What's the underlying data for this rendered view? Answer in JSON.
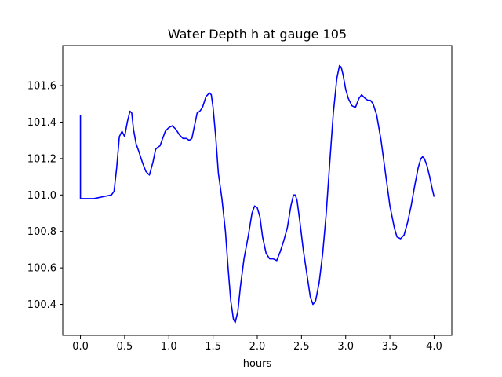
{
  "chart_data": {
    "type": "line",
    "title": "Water Depth h at gauge 105",
    "xlabel": "hours",
    "ylabel": "",
    "xlim": [
      -0.2,
      4.2
    ],
    "ylim": [
      100.23,
      101.82
    ],
    "xticks": [
      "0.0",
      "0.5",
      "1.0",
      "1.5",
      "2.0",
      "2.5",
      "3.0",
      "3.5",
      "4.0"
    ],
    "yticks": [
      "100.4",
      "100.6",
      "100.8",
      "101.0",
      "101.2",
      "101.4",
      "101.6"
    ],
    "grid": false,
    "color": "#0000ff",
    "series": [
      {
        "x": [
          0.0,
          0.0,
          0.0,
          0.05,
          0.1,
          0.15,
          0.2,
          0.25,
          0.3,
          0.35,
          0.38,
          0.41,
          0.44,
          0.47,
          0.5,
          0.53,
          0.56,
          0.58,
          0.6,
          0.63,
          0.66,
          0.7,
          0.74,
          0.78,
          0.82,
          0.85,
          0.87,
          0.9,
          0.93,
          0.96,
          1.0,
          1.04,
          1.08,
          1.12,
          1.16,
          1.2,
          1.23,
          1.26,
          1.29,
          1.32,
          1.35,
          1.38,
          1.42,
          1.46,
          1.48,
          1.5,
          1.53,
          1.56,
          1.6,
          1.64,
          1.67,
          1.7,
          1.73,
          1.75,
          1.78,
          1.81,
          1.85,
          1.9,
          1.94,
          1.97,
          2.0,
          2.03,
          2.06,
          2.1,
          2.14,
          2.18,
          2.22,
          2.26,
          2.3,
          2.34,
          2.38,
          2.41,
          2.43,
          2.45,
          2.48,
          2.52,
          2.56,
          2.6,
          2.63,
          2.66,
          2.7,
          2.74,
          2.78,
          2.82,
          2.86,
          2.9,
          2.93,
          2.95,
          2.97,
          3.0,
          3.03,
          3.07,
          3.11,
          3.15,
          3.18,
          3.2,
          3.22,
          3.25,
          3.28,
          3.31,
          3.35,
          3.4,
          3.45,
          3.5,
          3.55,
          3.58,
          3.62,
          3.66,
          3.7,
          3.74,
          3.78,
          3.82,
          3.85,
          3.87,
          3.89,
          3.92,
          3.95,
          3.98,
          4.0
        ],
        "y": [
          101.44,
          101.2,
          100.98,
          100.98,
          100.98,
          100.98,
          100.985,
          100.99,
          100.995,
          101.0,
          101.02,
          101.15,
          101.32,
          101.35,
          101.32,
          101.4,
          101.46,
          101.45,
          101.36,
          101.28,
          101.24,
          101.18,
          101.13,
          101.11,
          101.18,
          101.25,
          101.26,
          101.27,
          101.31,
          101.35,
          101.37,
          101.38,
          101.36,
          101.33,
          101.31,
          101.31,
          101.3,
          101.31,
          101.38,
          101.45,
          101.46,
          101.48,
          101.54,
          101.56,
          101.55,
          101.48,
          101.32,
          101.12,
          100.98,
          100.8,
          100.6,
          100.42,
          100.32,
          100.3,
          100.36,
          100.5,
          100.65,
          100.78,
          100.9,
          100.94,
          100.93,
          100.88,
          100.77,
          100.68,
          100.65,
          100.65,
          100.64,
          100.69,
          100.75,
          100.82,
          100.94,
          101.0,
          101.0,
          100.97,
          100.86,
          100.7,
          100.57,
          100.44,
          100.4,
          100.42,
          100.52,
          100.68,
          100.9,
          101.18,
          101.45,
          101.64,
          101.71,
          101.7,
          101.66,
          101.58,
          101.53,
          101.49,
          101.48,
          101.53,
          101.55,
          101.54,
          101.53,
          101.52,
          101.52,
          101.5,
          101.44,
          101.3,
          101.12,
          100.94,
          100.82,
          100.77,
          100.76,
          100.78,
          100.85,
          100.94,
          101.05,
          101.15,
          101.2,
          101.21,
          101.2,
          101.16,
          101.1,
          101.03,
          100.99
        ]
      }
    ]
  }
}
